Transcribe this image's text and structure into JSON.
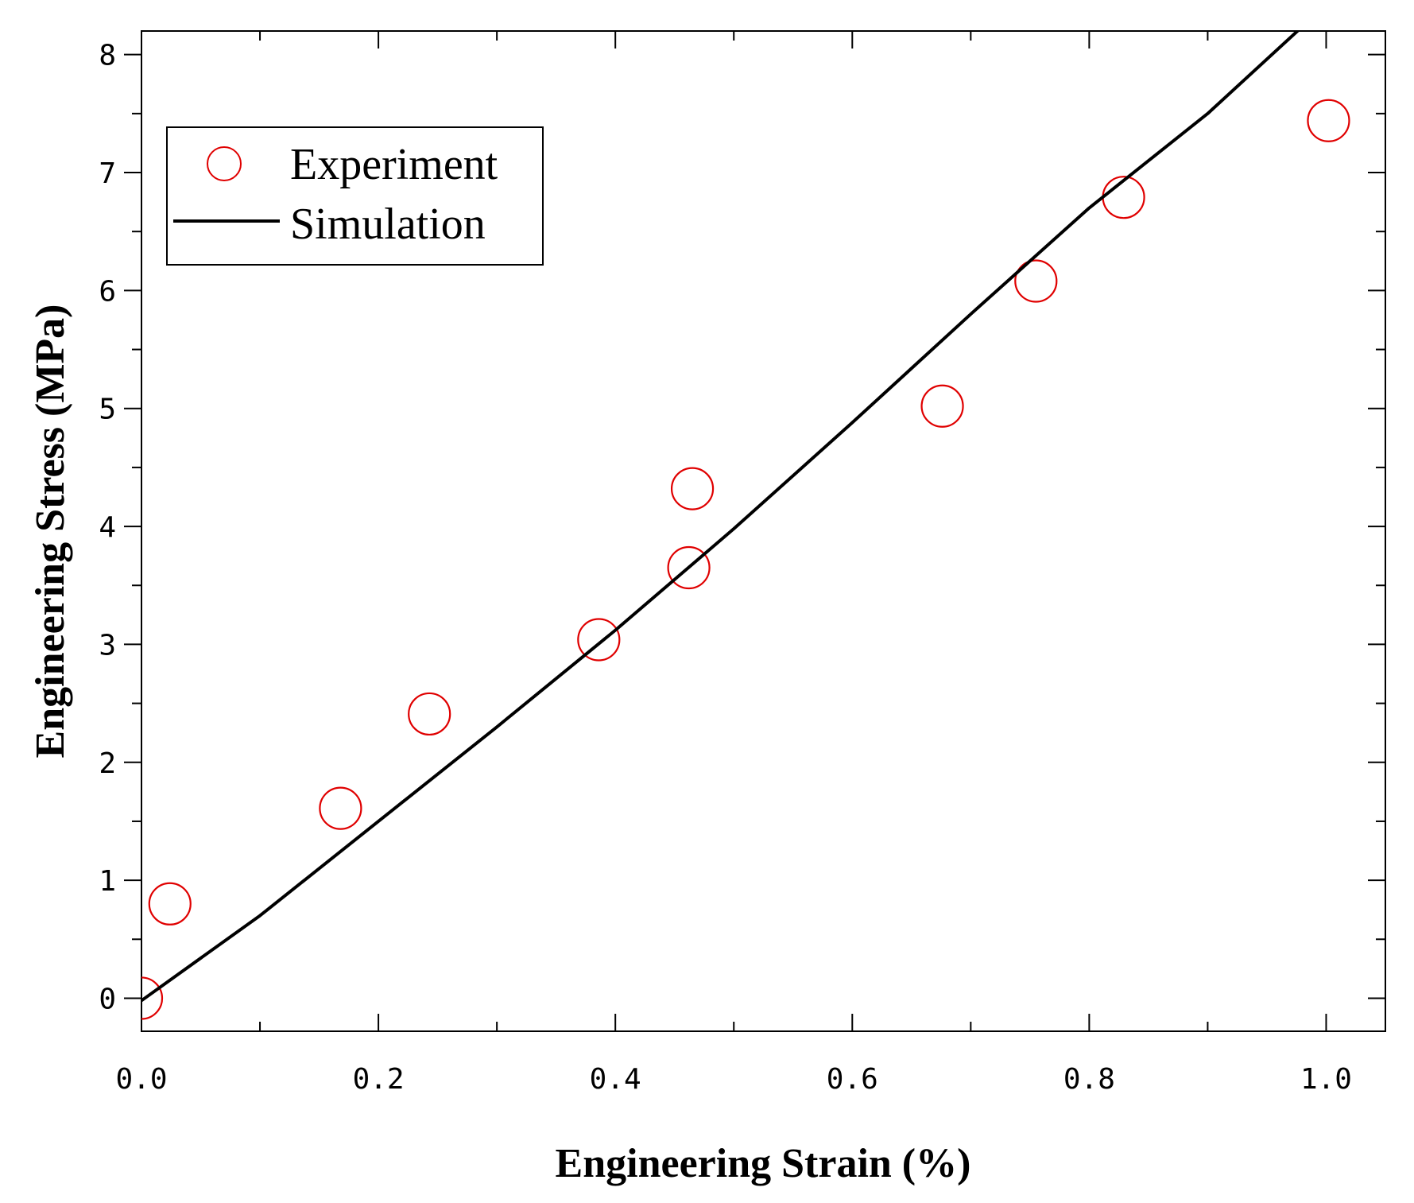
{
  "chart_data": {
    "type": "scatter",
    "title": "",
    "xlabel": "Engineering Strain (%)",
    "ylabel": "Engineering Stress (MPa)",
    "xlim": [
      0.0,
      1.05
    ],
    "ylim": [
      -0.28,
      8.2
    ],
    "xticks": [
      0.0,
      0.2,
      0.4,
      0.6,
      0.8,
      1.0
    ],
    "xtick_labels": [
      "0.0",
      "0.2",
      "0.4",
      "0.6",
      "0.8",
      "1.0"
    ],
    "yticks": [
      0,
      1,
      2,
      3,
      4,
      5,
      6,
      7,
      8
    ],
    "ytick_labels": [
      "0",
      "1",
      "2",
      "3",
      "4",
      "5",
      "6",
      "7",
      "8"
    ],
    "grid": false,
    "legend_position": "top-left",
    "series": [
      {
        "name": "Experiment",
        "kind": "scatter",
        "marker": "open-circle",
        "color": "#e00000",
        "x": [
          0.0,
          0.024,
          0.168,
          0.243,
          0.386,
          0.462,
          0.465,
          0.676,
          0.755,
          0.829,
          1.002
        ],
        "y": [
          0.0,
          0.8,
          1.61,
          2.41,
          3.04,
          3.65,
          4.32,
          5.02,
          6.08,
          6.79,
          7.44
        ]
      },
      {
        "name": "Simulation",
        "kind": "line",
        "color": "#000000",
        "x": [
          0.0,
          0.1,
          0.2,
          0.3,
          0.4,
          0.5,
          0.6,
          0.7,
          0.8,
          0.9,
          0.978
        ],
        "y": [
          -0.02,
          0.7,
          1.5,
          2.3,
          3.12,
          3.98,
          4.88,
          5.8,
          6.7,
          7.5,
          8.22
        ]
      }
    ]
  }
}
